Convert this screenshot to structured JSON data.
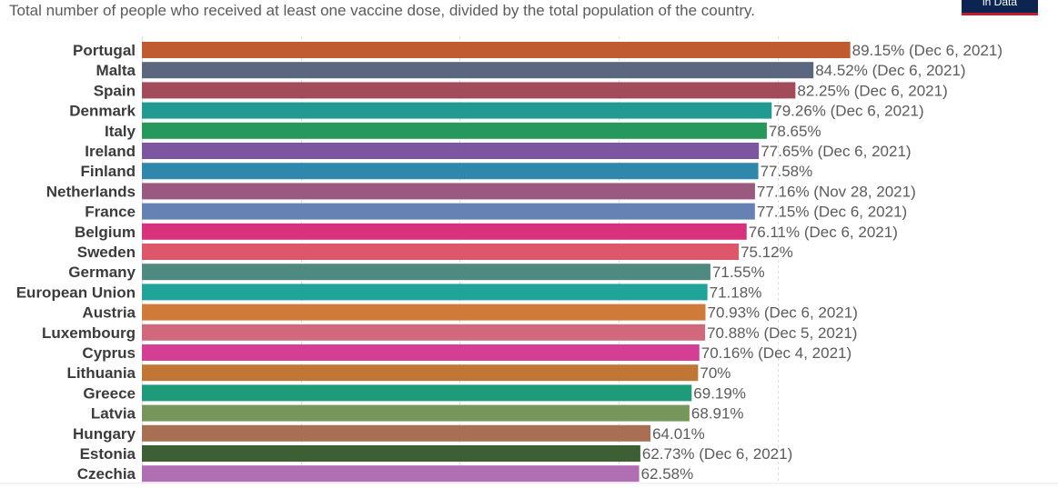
{
  "header": {
    "subtitle": "Total number of people who received at least one vaccine dose, divided by the total population of the country.",
    "logo_text": "in Data"
  },
  "chart_data": {
    "type": "bar",
    "orientation": "horizontal",
    "title": "",
    "subtitle": "Total number of people who received at least one vaccine dose, divided by the total population of the country.",
    "xlabel": "",
    "ylabel": "",
    "xlim": [
      0,
      90
    ],
    "grid": true,
    "unit": "%",
    "categories": [
      "Portugal",
      "Malta",
      "Spain",
      "Denmark",
      "Italy",
      "Ireland",
      "Finland",
      "Netherlands",
      "France",
      "Belgium",
      "Sweden",
      "Germany",
      "European Union",
      "Austria",
      "Luxembourg",
      "Cyprus",
      "Lithuania",
      "Greece",
      "Latvia",
      "Hungary",
      "Estonia",
      "Czechia"
    ],
    "values": [
      89.15,
      84.52,
      82.25,
      79.26,
      78.65,
      77.65,
      77.58,
      77.16,
      77.15,
      76.11,
      75.12,
      71.55,
      71.18,
      70.93,
      70.88,
      70.16,
      70,
      69.19,
      68.91,
      64.01,
      62.73,
      62.58
    ],
    "value_labels": [
      "89.15% (Dec 6, 2021)",
      "84.52% (Dec 6, 2021)",
      "82.25% (Dec 6, 2021)",
      "79.26% (Dec 6, 2021)",
      "78.65%",
      "77.65% (Dec 6, 2021)",
      "77.58%",
      "77.16% (Nov 28, 2021)",
      "77.15% (Dec 6, 2021)",
      "76.11% (Dec 6, 2021)",
      "75.12%",
      "71.55%",
      "71.18%",
      "70.93% (Dec 6, 2021)",
      "70.88% (Dec 5, 2021)",
      "70.16% (Dec 4, 2021)",
      "70%",
      "69.19%",
      "68.91%",
      "64.01%",
      "62.73% (Dec 6, 2021)",
      "62.58%"
    ],
    "colors": [
      "#c05a31",
      "#5b677f",
      "#a24b5a",
      "#219a92",
      "#26985c",
      "#7d55a1",
      "#2f87ac",
      "#9a5a80",
      "#6682b5",
      "#d9327c",
      "#dd566a",
      "#4f8a80",
      "#22a39a",
      "#cf7a38",
      "#d2687c",
      "#d43f95",
      "#c07736",
      "#1e9c7a",
      "#75975c",
      "#a96f53",
      "#3c5f34",
      "#b06fb2"
    ]
  }
}
